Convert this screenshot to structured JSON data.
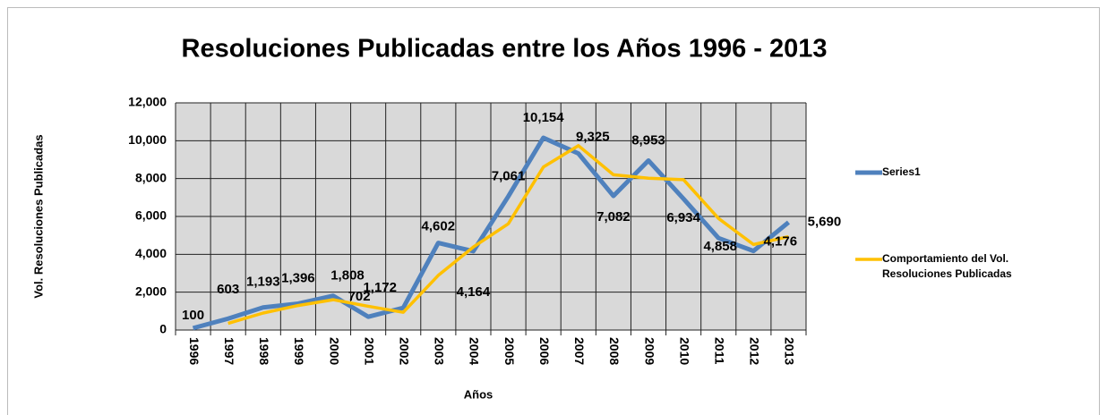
{
  "chart_data": {
    "type": "line",
    "title": "Resoluciones Publicadas entre los Años 1996 - 2013",
    "x_label": "Años",
    "y_label": "Vol. Resoluciones Publicadas",
    "categories": [
      "1996",
      "1997",
      "1998",
      "1999",
      "2000",
      "2001",
      "2002",
      "2003",
      "2004",
      "2005",
      "2006",
      "2007",
      "2008",
      "2009",
      "2010",
      "2011",
      "2012",
      "2013"
    ],
    "series": [
      {
        "name": "Series1",
        "color": "#4f81bd",
        "values": [
          100,
          603,
          1193,
          1396,
          1808,
          702,
          1172,
          4602,
          4164,
          7061,
          10154,
          9325,
          7082,
          8953,
          6934,
          4858,
          4176,
          5690
        ],
        "value_labels": [
          "100",
          "603",
          "1,193",
          "1,396",
          "1,808",
          "702",
          "1,172",
          "4,602",
          "4,164",
          "7,061",
          "10,154",
          "9,325",
          "7,082",
          "8,953",
          "6,934",
          "4,858",
          "4,176",
          "5,690"
        ]
      },
      {
        "name": "Comportamiento del Vol. Resoluciones Publicadas",
        "color": "#ffc000",
        "values": [
          null,
          352,
          898,
          1295,
          1602,
          1255,
          937,
          2887,
          4383,
          5613,
          8608,
          9740,
          8204,
          8018,
          7944,
          5896,
          4517,
          4933
        ]
      }
    ],
    "ylim": [
      0,
      12000
    ],
    "yticks": [
      0,
      {
        "value": 2000,
        "label": "2,000"
      },
      {
        "value": 4000,
        "label": "4,000"
      },
      {
        "value": 6000,
        "label": "6,000"
      },
      {
        "value": 8000,
        "label": "8,000"
      },
      {
        "value": 10000,
        "label": "10,000"
      },
      {
        "value": 12000,
        "label": "12,000"
      }
    ],
    "grid": true
  }
}
